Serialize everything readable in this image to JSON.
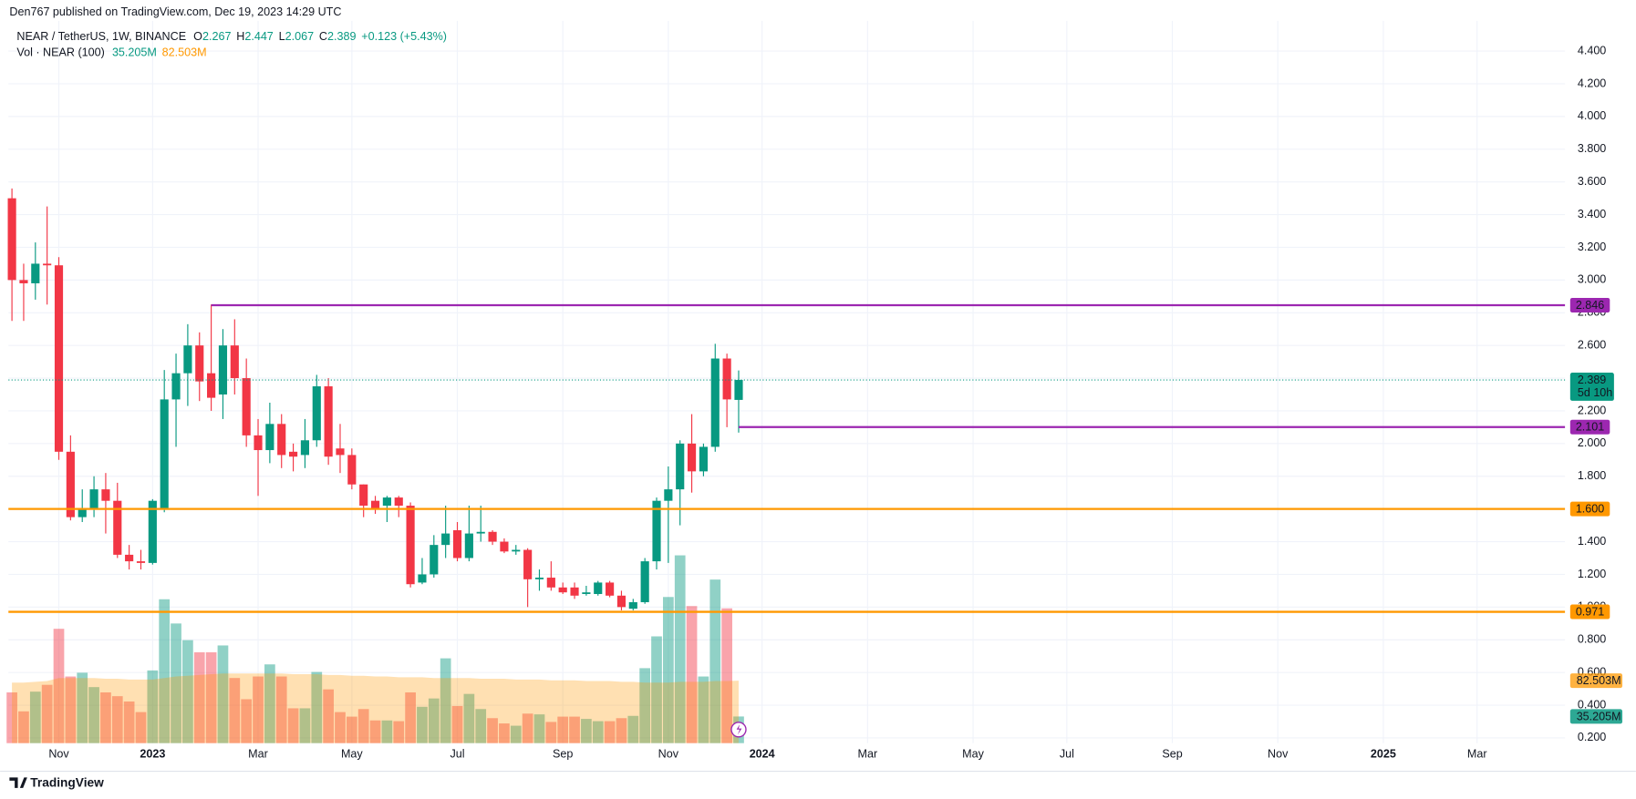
{
  "published": "Den767 published on TradingView.com, Dec 19, 2023 14:29 UTC",
  "footer": "TradingView",
  "chart_data": {
    "type": "candlestick",
    "symbol": "NEAR / TetherUS, 1W, BINANCE",
    "ohlc_letters": [
      "O",
      "H",
      "L",
      "C"
    ],
    "change": "+0.123 (+5.43%)",
    "volume_title": "Vol · NEAR (100)",
    "volume_label": "35.205M",
    "volume_ma_label": "82.503M",
    "countdown": "5d 10h",
    "up_color": "#089981",
    "down_color": "#f23645",
    "volume_ma_color": "#ff9800",
    "grid": true,
    "open": [
      3.5,
      3.0,
      2.98,
      3.1,
      3.09,
      1.95,
      1.55,
      1.6,
      1.72,
      1.65,
      1.32,
      1.28,
      1.27,
      1.6,
      2.27,
      2.43,
      2.6,
      2.43,
      2.3,
      2.6,
      2.4,
      2.05,
      1.96,
      2.12,
      1.95,
      1.93,
      2.02,
      2.35,
      1.97,
      1.93,
      1.75,
      1.65,
      1.62,
      1.67,
      1.62,
      1.15,
      1.2,
      1.38,
      1.47,
      1.3,
      1.45,
      1.46,
      1.4,
      1.34,
      1.35,
      1.17,
      1.18,
      1.12,
      1.12,
      1.08,
      1.08,
      1.15,
      1.07,
      0.99,
      1.03,
      1.28,
      1.65,
      1.72,
      2.0,
      1.83,
      1.98,
      2.52,
      2.267
    ],
    "high": [
      3.56,
      3.1,
      3.23,
      3.45,
      3.14,
      2.05,
      1.72,
      1.8,
      1.82,
      1.76,
      1.38,
      1.35,
      1.66,
      2.45,
      2.55,
      2.73,
      2.68,
      2.85,
      2.7,
      2.76,
      2.52,
      2.15,
      2.25,
      2.18,
      2.0,
      2.15,
      2.42,
      2.4,
      2.12,
      1.97,
      1.75,
      1.68,
      1.68,
      1.68,
      1.64,
      1.3,
      1.44,
      1.62,
      1.52,
      1.62,
      1.62,
      1.47,
      1.42,
      1.38,
      1.36,
      1.23,
      1.28,
      1.15,
      1.15,
      1.13,
      1.16,
      1.16,
      1.1,
      1.05,
      1.3,
      1.67,
      1.86,
      2.02,
      2.18,
      2.0,
      2.61,
      2.55,
      2.447
    ],
    "low": [
      2.75,
      2.75,
      2.88,
      2.85,
      1.9,
      1.53,
      1.52,
      1.55,
      1.45,
      1.3,
      1.23,
      1.23,
      1.26,
      1.58,
      1.98,
      2.23,
      2.26,
      2.2,
      2.15,
      2.3,
      1.98,
      1.68,
      1.88,
      1.85,
      1.83,
      1.85,
      1.98,
      1.87,
      1.82,
      1.72,
      1.55,
      1.57,
      1.52,
      1.55,
      1.12,
      1.14,
      1.18,
      1.3,
      1.28,
      1.28,
      1.4,
      1.38,
      1.33,
      1.32,
      1.0,
      1.1,
      1.1,
      1.08,
      1.05,
      1.07,
      1.07,
      1.06,
      0.98,
      0.98,
      1.02,
      1.23,
      1.27,
      1.5,
      1.7,
      1.8,
      1.95,
      2.1,
      2.067
    ],
    "close": [
      3.0,
      2.98,
      3.1,
      3.09,
      1.95,
      1.55,
      1.6,
      1.72,
      1.65,
      1.32,
      1.28,
      1.27,
      1.65,
      2.27,
      2.43,
      2.6,
      2.38,
      2.28,
      2.6,
      2.4,
      2.05,
      1.96,
      2.12,
      1.93,
      1.92,
      2.02,
      2.35,
      1.92,
      1.93,
      1.75,
      1.62,
      1.6,
      1.67,
      1.62,
      1.14,
      1.2,
      1.38,
      1.45,
      1.3,
      1.45,
      1.46,
      1.4,
      1.34,
      1.35,
      1.17,
      1.18,
      1.12,
      1.09,
      1.07,
      1.09,
      1.15,
      1.07,
      1.0,
      1.03,
      1.28,
      1.65,
      1.72,
      2.0,
      1.83,
      1.98,
      2.52,
      2.27,
      2.389
    ],
    "volume": [
      67,
      42,
      68,
      77,
      151,
      88,
      93,
      74,
      67,
      62,
      55,
      41,
      96,
      190,
      158,
      136,
      120,
      120,
      129,
      86,
      58,
      88,
      104,
      88,
      46,
      46,
      94,
      71,
      41,
      35,
      45,
      30,
      30,
      29,
      67,
      48,
      59,
      112,
      49,
      65,
      45,
      33,
      26,
      23,
      39,
      38,
      28,
      35,
      35,
      32,
      29,
      29,
      33,
      36,
      99,
      141,
      193,
      248,
      181,
      88,
      216,
      178,
      35.205
    ],
    "volume_ma": [
      80,
      80,
      81,
      82,
      86,
      86,
      86,
      86,
      85,
      85,
      84,
      84,
      84,
      86,
      88,
      89,
      90,
      91,
      92,
      92,
      92,
      92,
      92,
      92,
      91,
      91,
      91,
      90,
      90,
      89,
      89,
      88,
      88,
      87,
      87,
      87,
      86,
      86,
      86,
      86,
      85,
      85,
      85,
      84,
      84,
      84,
      83,
      83,
      83,
      82,
      82,
      82,
      81,
      81,
      80,
      80,
      80,
      81,
      81,
      81,
      82,
      82,
      82.503
    ],
    "ylim": [
      0.168,
      4.585
    ],
    "yticks": [
      {
        "value": 0.2,
        "label": "0.200"
      },
      {
        "value": 0.4,
        "label": "0.400"
      },
      {
        "value": 0.6,
        "label": "0.600"
      },
      {
        "value": 0.8,
        "label": "0.800"
      },
      {
        "value": 1.0,
        "label": "1.000"
      },
      {
        "value": 1.2,
        "label": "1.200"
      },
      {
        "value": 1.4,
        "label": "1.400"
      },
      {
        "value": 1.6,
        "label": "1.600"
      },
      {
        "value": 1.8,
        "label": "1.800"
      },
      {
        "value": 2.0,
        "label": "2.000"
      },
      {
        "value": 2.2,
        "label": "2.200"
      },
      {
        "value": 2.4,
        "label": "2.400"
      },
      {
        "value": 2.6,
        "label": "2.600"
      },
      {
        "value": 2.8,
        "label": "2.800"
      },
      {
        "value": 3.0,
        "label": "3.000"
      },
      {
        "value": 3.2,
        "label": "3.200"
      },
      {
        "value": 3.4,
        "label": "3.400"
      },
      {
        "value": 3.6,
        "label": "3.600"
      },
      {
        "value": 3.8,
        "label": "3.800"
      },
      {
        "value": 4.0,
        "label": "4.000"
      },
      {
        "value": 4.2,
        "label": "4.200"
      },
      {
        "value": 4.4,
        "label": "4.400"
      }
    ],
    "xlim": [
      -0.3,
      132.5
    ],
    "xticks": [
      {
        "value": 4,
        "label": "Nov"
      },
      {
        "value": 12,
        "label": "2023"
      },
      {
        "value": 21,
        "label": "Mar"
      },
      {
        "value": 29,
        "label": "May"
      },
      {
        "value": 38,
        "label": "Jul"
      },
      {
        "value": 47,
        "label": "Sep"
      },
      {
        "value": 56,
        "label": "Nov"
      },
      {
        "value": 64,
        "label": "2024"
      },
      {
        "value": 73,
        "label": "Mar"
      },
      {
        "value": 82,
        "label": "May"
      },
      {
        "value": 90,
        "label": "Jul"
      },
      {
        "value": 99,
        "label": "Sep"
      },
      {
        "value": 108,
        "label": "Nov"
      },
      {
        "value": 117,
        "label": "2025"
      },
      {
        "value": 125,
        "label": "Mar"
      }
    ],
    "levels": [
      {
        "value": 2.846,
        "color": "#9c27b0",
        "from": 17
      },
      {
        "value": 2.101,
        "color": "#9c27b0",
        "from": 62
      },
      {
        "value": 1.6,
        "label": "1.600",
        "color": "#ff9800"
      },
      {
        "value": 0.971,
        "color": "#ff9800"
      }
    ]
  }
}
